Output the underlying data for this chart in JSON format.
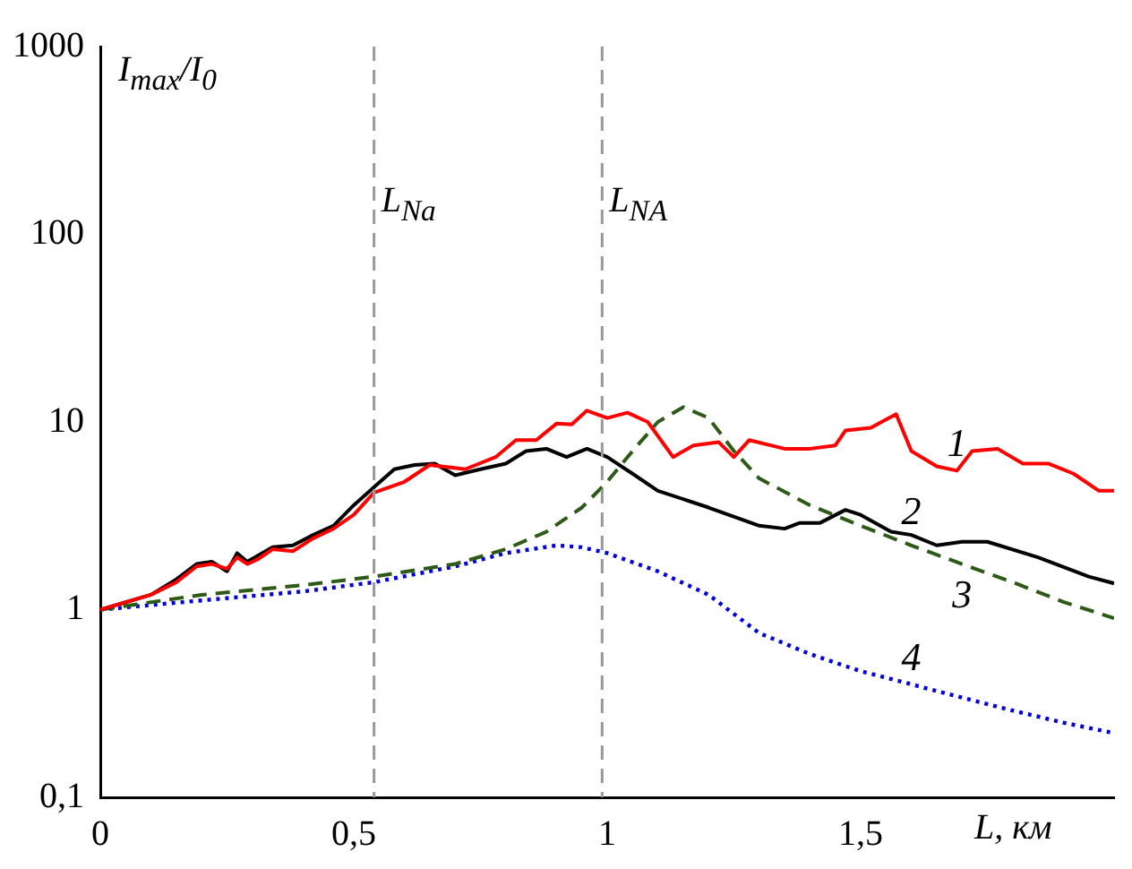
{
  "chart_data": {
    "type": "line",
    "xlabel": "L, км",
    "ylabel": "I$_{max}$/I$_{0}$",
    "log": "y",
    "grid": false,
    "marker": "none",
    "xlim": [
      0,
      2
    ],
    "xticks": [
      0,
      {
        "value": 0.5,
        "label": "0,5"
      },
      1,
      {
        "value": 1.5,
        "label": "1,5"
      }
    ],
    "ylim": [
      0.1,
      1000
    ],
    "yticks": [
      {
        "value": 0.1,
        "label": "0,1"
      },
      1,
      10,
      100,
      1000
    ],
    "ref_lines": [
      {
        "axis": "x",
        "value": 0.54,
        "label": "L$_{Na}$",
        "color": "#999999",
        "line_style": "dashed"
      },
      {
        "axis": "x",
        "value": 0.99,
        "label": "L$_{NA}$",
        "color": "#999999",
        "line_style": "dashed"
      }
    ],
    "series": [
      {
        "name": "1",
        "color": "#ff0000",
        "line_style": "solid",
        "x": [
          0,
          0.1,
          0.15,
          0.19,
          0.22,
          0.25,
          0.27,
          0.29,
          0.31,
          0.34,
          0.38,
          0.42,
          0.46,
          0.5,
          0.54,
          0.6,
          0.65,
          0.72,
          0.78,
          0.82,
          0.86,
          0.9,
          0.93,
          0.96,
          1.0,
          1.04,
          1.08,
          1.13,
          1.17,
          1.22,
          1.25,
          1.28,
          1.35,
          1.4,
          1.45,
          1.47,
          1.52,
          1.57,
          1.6,
          1.65,
          1.69,
          1.72,
          1.77,
          1.82,
          1.87,
          1.92,
          1.97,
          2.0
        ],
        "values": [
          1.0,
          1.2,
          1.4,
          1.7,
          1.75,
          1.65,
          1.9,
          1.75,
          1.85,
          2.1,
          2.05,
          2.4,
          2.7,
          3.2,
          4.2,
          4.8,
          5.9,
          5.6,
          6.5,
          8.0,
          8.0,
          9.8,
          9.7,
          11.5,
          10.5,
          11.2,
          10.0,
          6.5,
          7.5,
          7.8,
          6.5,
          8.0,
          7.2,
          7.2,
          7.5,
          9.0,
          9.3,
          11.0,
          7.0,
          5.8,
          5.5,
          7.0,
          7.2,
          6.0,
          6.0,
          5.3,
          4.3,
          4.3
        ]
      },
      {
        "name": "2",
        "color": "#000000",
        "line_style": "solid",
        "x": [
          0,
          0.1,
          0.15,
          0.19,
          0.22,
          0.25,
          0.27,
          0.29,
          0.34,
          0.38,
          0.42,
          0.46,
          0.5,
          0.54,
          0.58,
          0.62,
          0.66,
          0.7,
          0.75,
          0.8,
          0.84,
          0.88,
          0.92,
          0.96,
          1.0,
          1.05,
          1.1,
          1.2,
          1.3,
          1.35,
          1.38,
          1.42,
          1.47,
          1.5,
          1.56,
          1.6,
          1.65,
          1.7,
          1.75,
          1.85,
          1.95,
          2.0
        ],
        "values": [
          1.0,
          1.2,
          1.45,
          1.75,
          1.8,
          1.6,
          2.0,
          1.8,
          2.15,
          2.2,
          2.5,
          2.8,
          3.6,
          4.5,
          5.6,
          5.9,
          6.0,
          5.2,
          5.6,
          6.0,
          7.0,
          7.2,
          6.5,
          7.2,
          6.5,
          5.3,
          4.3,
          3.5,
          2.8,
          2.7,
          2.9,
          2.9,
          3.4,
          3.2,
          2.6,
          2.5,
          2.2,
          2.3,
          2.3,
          1.9,
          1.5,
          1.38
        ]
      },
      {
        "name": "3",
        "color": "#2d5a17",
        "line_style": "dashed",
        "x": [
          0,
          0.2,
          0.4,
          0.54,
          0.7,
          0.8,
          0.88,
          0.95,
          1.0,
          1.05,
          1.1,
          1.15,
          1.2,
          1.25,
          1.3,
          1.4,
          1.5,
          1.6,
          1.7,
          1.8,
          1.9,
          2.0
        ],
        "values": [
          1.0,
          1.2,
          1.35,
          1.5,
          1.75,
          2.1,
          2.6,
          3.5,
          4.8,
          7.0,
          10.0,
          12.0,
          10.5,
          7.0,
          5.0,
          3.6,
          2.8,
          2.2,
          1.75,
          1.4,
          1.1,
          0.9
        ]
      },
      {
        "name": "4",
        "color": "#0000dd",
        "line_style": "dotted",
        "x": [
          0,
          0.2,
          0.4,
          0.54,
          0.7,
          0.8,
          0.9,
          0.95,
          1.0,
          1.1,
          1.2,
          1.3,
          1.4,
          1.5,
          1.6,
          1.7,
          1.8,
          1.9,
          2.0
        ],
        "values": [
          1.0,
          1.12,
          1.25,
          1.4,
          1.7,
          2.0,
          2.2,
          2.15,
          2.0,
          1.6,
          1.2,
          0.75,
          0.58,
          0.47,
          0.4,
          0.34,
          0.29,
          0.25,
          0.22
        ]
      }
    ]
  }
}
